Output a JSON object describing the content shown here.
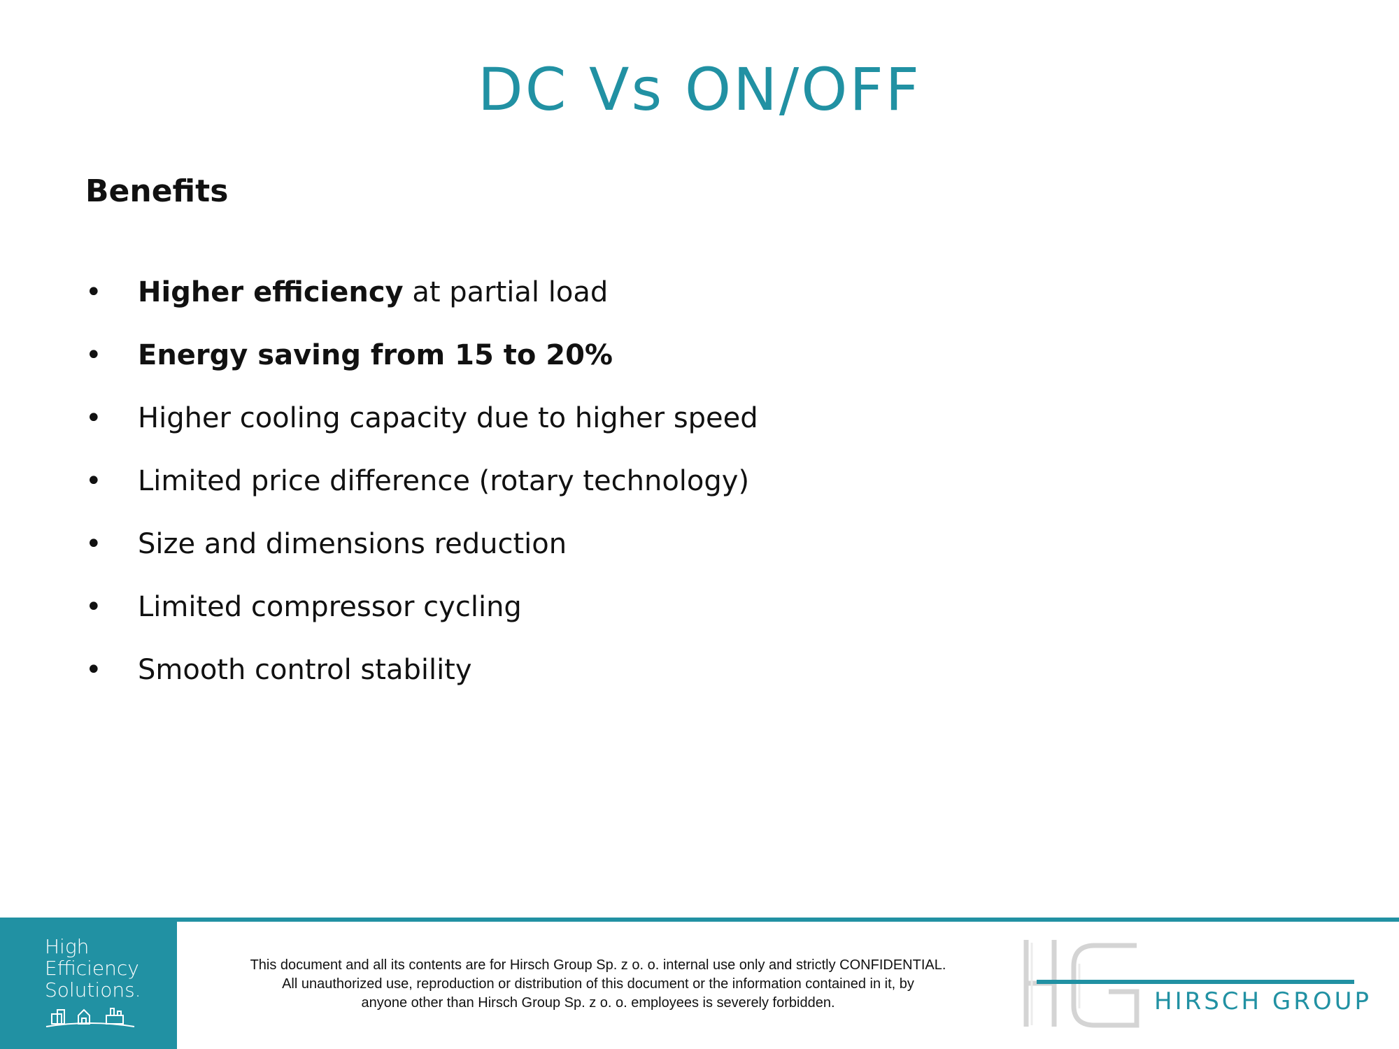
{
  "slide": {
    "title": "DC Vs ON/OFF",
    "section_heading": "Benefits"
  },
  "benefits": [
    {
      "bold": "Higher efficiency",
      "rest": " at partial load"
    },
    {
      "bold": "Energy saving from 15 to 20%",
      "rest": ""
    },
    {
      "bold": "",
      "rest": "Higher cooling capacity due to higher speed"
    },
    {
      "bold": "",
      "rest": "Limited price difference (rotary technology)"
    },
    {
      "bold": "",
      "rest": "Size and dimensions reduction"
    },
    {
      "bold": "",
      "rest": "Limited compressor cycling"
    },
    {
      "bold": "",
      "rest": "Smooth control stability"
    }
  ],
  "bullet_symbol": "•",
  "footer": {
    "tagline_lines": [
      "High",
      "Efficiency",
      "Solutions."
    ],
    "notice_lines": [
      "This document and all its contents are for Hirsch Group Sp. z o. o. internal use only and strictly CONFIDENTIAL.",
      "All unauthorized use, reproduction or distribution of this document or the information contained in it, by",
      "anyone other than Hirsch Group Sp. z o. o. employees is severely forbidden."
    ],
    "company_name": "HIRSCH GROUP",
    "monogram": "HG"
  },
  "colors": {
    "accent": "#2191a3",
    "text": "#111111",
    "background": "#ffffff"
  },
  "icons": [
    "buildings-icon",
    "house-icon",
    "factory-icon"
  ]
}
